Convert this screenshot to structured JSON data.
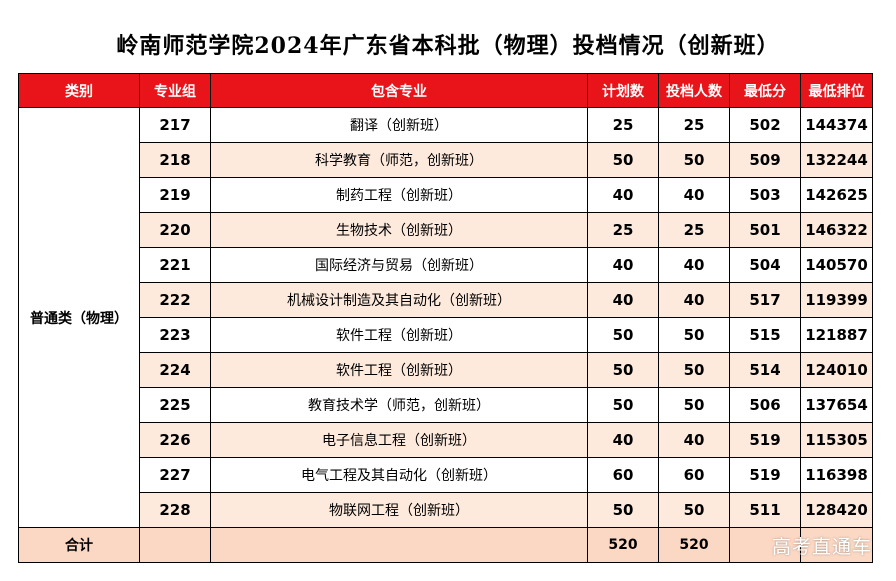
{
  "title": "岭南师范学院2024年广东省本科批（物理）投档情况（创新班）",
  "headers": [
    "类别",
    "专业组",
    "包含专业",
    "计划数",
    "投档人数",
    "最低分",
    "最低排位"
  ],
  "category": "普通类（物理）",
  "rows": [
    {
      "group": "217",
      "major": "翻译（创新班）",
      "plan": "25",
      "admitted": "25",
      "min_score": "502",
      "min_rank": "144374"
    },
    {
      "group": "218",
      "major": "科学教育（师范，创新班）",
      "plan": "50",
      "admitted": "50",
      "min_score": "509",
      "min_rank": "132244"
    },
    {
      "group": "219",
      "major": "制药工程（创新班）",
      "plan": "40",
      "admitted": "40",
      "min_score": "503",
      "min_rank": "142625"
    },
    {
      "group": "220",
      "major": "生物技术（创新班）",
      "plan": "25",
      "admitted": "25",
      "min_score": "501",
      "min_rank": "146322"
    },
    {
      "group": "221",
      "major": "国际经济与贸易（创新班）",
      "plan": "40",
      "admitted": "40",
      "min_score": "504",
      "min_rank": "140570"
    },
    {
      "group": "222",
      "major": "机械设计制造及其自动化（创新班）",
      "plan": "40",
      "admitted": "40",
      "min_score": "517",
      "min_rank": "119399"
    },
    {
      "group": "223",
      "major": "软件工程（创新班）",
      "plan": "50",
      "admitted": "50",
      "min_score": "515",
      "min_rank": "121887"
    },
    {
      "group": "224",
      "major": "软件工程（创新班）",
      "plan": "50",
      "admitted": "50",
      "min_score": "514",
      "min_rank": "124010"
    },
    {
      "group": "225",
      "major": "教育技术学（师范，创新班）",
      "plan": "50",
      "admitted": "50",
      "min_score": "506",
      "min_rank": "137654"
    },
    {
      "group": "226",
      "major": "电子信息工程（创新班）",
      "plan": "40",
      "admitted": "40",
      "min_score": "519",
      "min_rank": "115305"
    },
    {
      "group": "227",
      "major": "电气工程及其自动化（创新班）",
      "plan": "60",
      "admitted": "60",
      "min_score": "519",
      "min_rank": "116398"
    },
    {
      "group": "228",
      "major": "物联网工程（创新班）",
      "plan": "50",
      "admitted": "50",
      "min_score": "511",
      "min_rank": "128420"
    }
  ],
  "total": {
    "label": "合计",
    "plan": "520",
    "admitted": "520"
  },
  "watermark": "高考直通车",
  "colors": {
    "header_bg": "#e8141a",
    "header_text": "#ffffff",
    "alt_row_bg": "#fdeadd",
    "total_bg": "#fbd8c4"
  }
}
